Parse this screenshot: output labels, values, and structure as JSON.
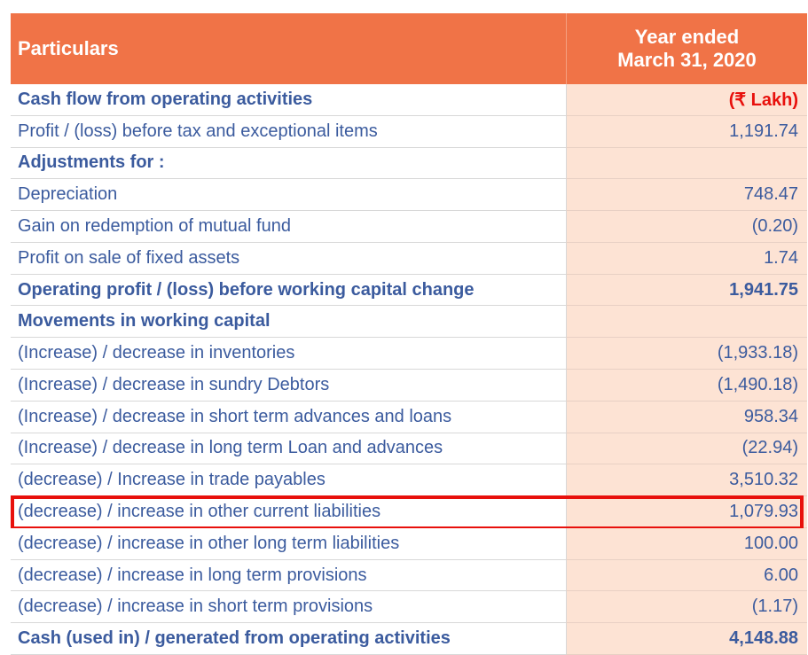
{
  "table": {
    "header": {
      "particulars": "Particulars",
      "year": [
        "Year ended",
        "March 31, 2020"
      ]
    },
    "rows": [
      {
        "label": "Cash flow from operating activities",
        "value": "(₹ Lakh)",
        "bold": true,
        "value_color": "#e8100c"
      },
      {
        "label": "Profit / (loss) before tax and exceptional items",
        "value": "1,191.74"
      },
      {
        "label": "Adjustments for :",
        "bold": true
      },
      {
        "label": "Depreciation",
        "value": "748.47"
      },
      {
        "label": "Gain on redemption of mutual fund",
        "value": "(0.20)"
      },
      {
        "label": "Profit on sale of fixed assets",
        "value": "1.74"
      },
      {
        "label": "Operating profit / (loss) before working capital change",
        "value": "1,941.75",
        "bold": true
      },
      {
        "label": "Movements in working capital",
        "bold": true
      },
      {
        "label": "(Increase) / decrease in inventories",
        "value": "(1,933.18)"
      },
      {
        "label": "(Increase) / decrease in sundry Debtors",
        "value": "(1,490.18)"
      },
      {
        "label": "(Increase) / decrease in short term advances and loans",
        "value": "958.34"
      },
      {
        "label": "(Increase) / decrease in long term Loan and advances",
        "value": "(22.94)"
      },
      {
        "label": "(decrease) / Increase in trade payables",
        "value": "3,510.32"
      },
      {
        "label": "(decrease) / increase in other current liabilities",
        "value": "1,079.93",
        "highlighted": true
      },
      {
        "label": "(decrease) / increase in other long term liabilities",
        "value": "100.00"
      },
      {
        "label": "(decrease) / increase in long term provisions",
        "value": "6.00"
      },
      {
        "label": "(decrease) / increase in short term provisions",
        "value": "(1.17)"
      },
      {
        "label": "Cash (used in) / generated from operating activities",
        "value": "4,148.88",
        "bold": true
      }
    ]
  }
}
